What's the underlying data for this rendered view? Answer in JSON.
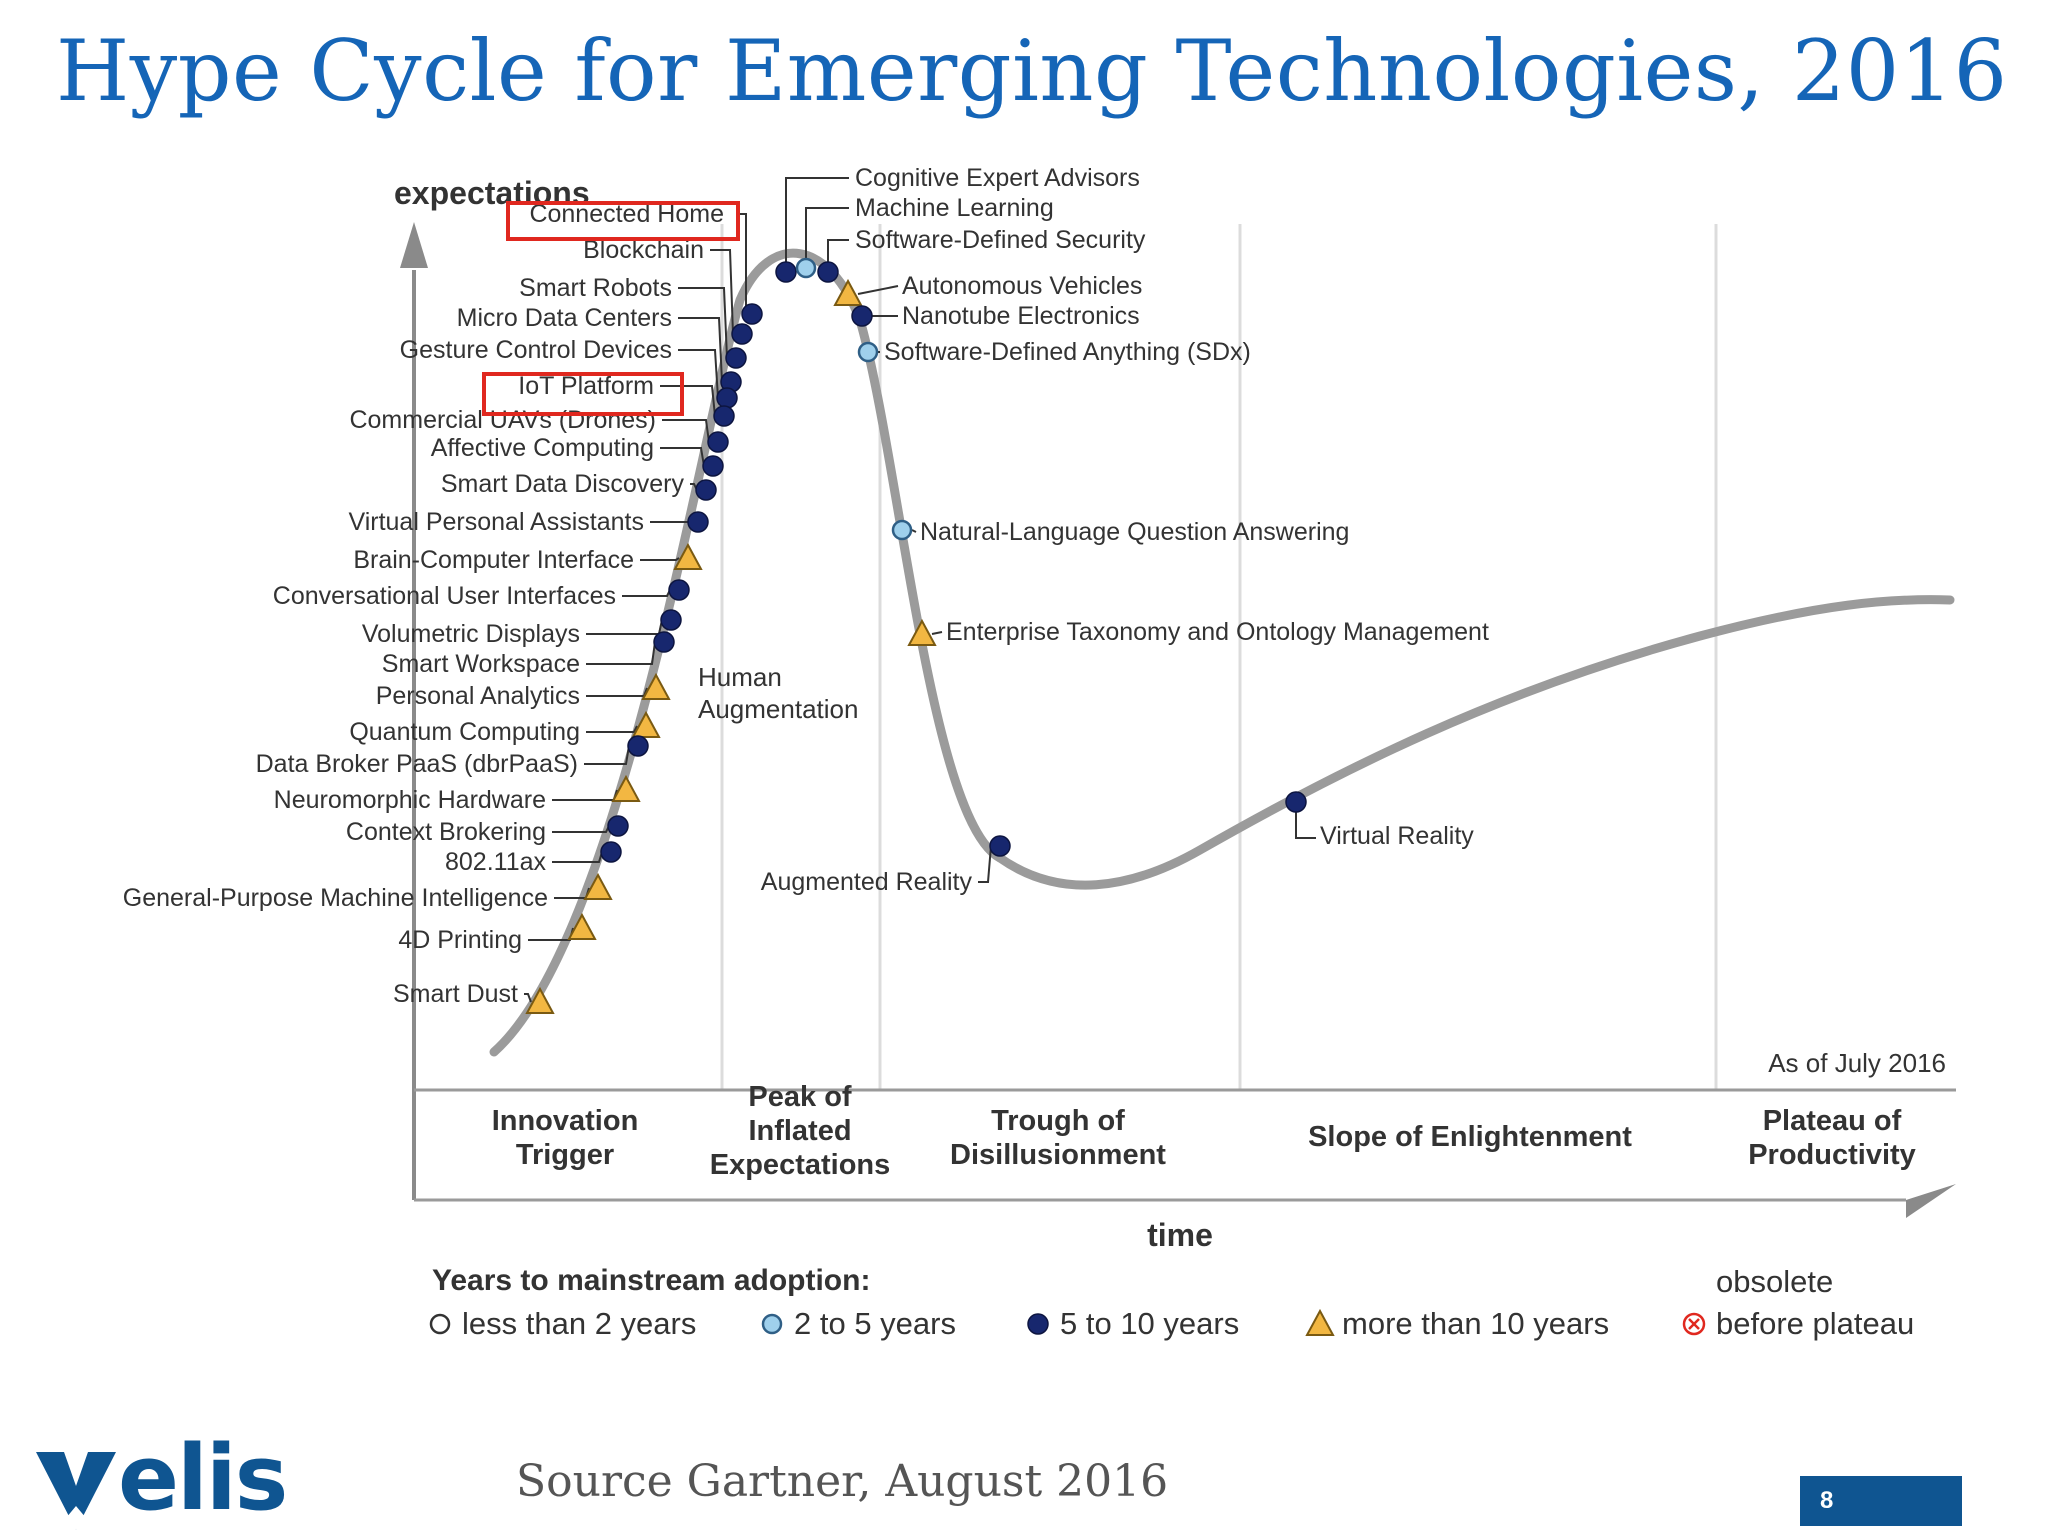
{
  "title": "Hype Cycle for Emerging Technologies, 2016",
  "source": "Source Gartner, August 2016",
  "page_number": "8",
  "logo_text": "elis",
  "colors": {
    "title": "#1565b7",
    "dark_dot": "#17276e",
    "light_dot": "#9fd0ec",
    "triangle": "#f2b742",
    "highlight": "#e0281f",
    "curve": "#9b9b9b",
    "brand": "#0f5591"
  },
  "chart": {
    "y_label": "expectations",
    "x_label": "time",
    "as_of": "As of July 2016",
    "phases": [
      {
        "lines": [
          "Innovation",
          "Trigger"
        ]
      },
      {
        "lines": [
          "Peak of",
          "Inflated",
          "Expectations"
        ]
      },
      {
        "lines": [
          "Trough of",
          "Disillusionment"
        ]
      },
      {
        "lines": [
          "Slope of Enlightenment"
        ]
      },
      {
        "lines": [
          "Plateau of",
          "Productivity"
        ]
      }
    ],
    "human_augmentation": [
      "Human",
      "Augmentation"
    ]
  },
  "chart_data": {
    "type": "scatter",
    "title": "Hype Cycle for Emerging Technologies, 2016",
    "xlabel": "time",
    "ylabel": "expectations",
    "categories": [
      "less than 2 years",
      "2 to 5 years",
      "5 to 10 years",
      "more than 10 years",
      "obsolete before plateau"
    ],
    "points": [
      {
        "name": "Connected Home",
        "type": "5-10",
        "highlight": true
      },
      {
        "name": "Blockchain",
        "type": "5-10"
      },
      {
        "name": "Smart Robots",
        "type": "5-10"
      },
      {
        "name": "Micro Data Centers",
        "type": "5-10"
      },
      {
        "name": "Gesture Control Devices",
        "type": "5-10"
      },
      {
        "name": "IoT Platform",
        "type": "5-10",
        "highlight": true
      },
      {
        "name": "Commercial UAVs (Drones)",
        "type": "5-10"
      },
      {
        "name": "Affective Computing",
        "type": "5-10"
      },
      {
        "name": "Smart Data Discovery",
        "type": "5-10"
      },
      {
        "name": "Virtual Personal Assistants",
        "type": "5-10"
      },
      {
        "name": "Brain-Computer Interface",
        "type": ">10"
      },
      {
        "name": "Conversational User Interfaces",
        "type": "5-10"
      },
      {
        "name": "Volumetric Displays",
        "type": "5-10"
      },
      {
        "name": "Smart Workspace",
        "type": "5-10"
      },
      {
        "name": "Personal Analytics",
        "type": ">10"
      },
      {
        "name": "Quantum Computing",
        "type": ">10"
      },
      {
        "name": "Data Broker PaaS (dbrPaaS)",
        "type": "5-10"
      },
      {
        "name": "Neuromorphic Hardware",
        "type": ">10"
      },
      {
        "name": "Context Brokering",
        "type": "5-10"
      },
      {
        "name": "802.11ax",
        "type": "5-10"
      },
      {
        "name": "General-Purpose Machine Intelligence",
        "type": ">10"
      },
      {
        "name": "4D Printing",
        "type": ">10"
      },
      {
        "name": "Smart Dust",
        "type": ">10"
      },
      {
        "name": "Cognitive Expert Advisors",
        "type": "5-10"
      },
      {
        "name": "Machine Learning",
        "type": "2-5"
      },
      {
        "name": "Software-Defined Security",
        "type": "5-10"
      },
      {
        "name": "Autonomous Vehicles",
        "type": ">10"
      },
      {
        "name": "Nanotube Electronics",
        "type": "5-10"
      },
      {
        "name": "Software-Defined Anything (SDx)",
        "type": "2-5"
      },
      {
        "name": "Natural-Language Question Answering",
        "type": "2-5"
      },
      {
        "name": "Enterprise Taxonomy and Ontology Management",
        "type": ">10"
      },
      {
        "name": "Augmented Reality",
        "type": "5-10"
      },
      {
        "name": "Virtual Reality",
        "type": "5-10"
      }
    ]
  },
  "legend": {
    "title": "Years to mainstream adoption:",
    "items": [
      {
        "key": "lt2",
        "label": "less than 2 years"
      },
      {
        "key": "2-5",
        "label": "2 to 5 years"
      },
      {
        "key": "5-10",
        "label": "5 to 10 years"
      },
      {
        "key": ">10",
        "label": "more than 10 years"
      },
      {
        "key": "obsolete",
        "label_top": "obsolete",
        "label": "before plateau"
      }
    ]
  }
}
